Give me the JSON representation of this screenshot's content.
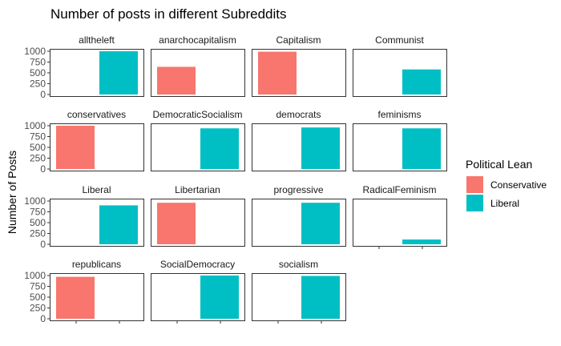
{
  "chart_data": {
    "type": "bar",
    "title": "Number of posts in different Subreddits",
    "xlabel": "",
    "ylabel": "Number of Posts",
    "ylim": [
      0,
      1050
    ],
    "yticks": [
      0,
      250,
      500,
      750,
      1000
    ],
    "facet_layout": "4 columns, 4 rows, shared axes",
    "grid": false,
    "legend": {
      "title": "Political Lean",
      "position": "right",
      "entries": [
        {
          "label": "Conservative",
          "color": "#F8766D"
        },
        {
          "label": "Liberal",
          "color": "#00BFC4"
        }
      ]
    },
    "categories": [
      "Conservative",
      "Liberal"
    ],
    "panels": [
      {
        "subreddit": "alltheleft",
        "lean": "Liberal",
        "value": 1000
      },
      {
        "subreddit": "anarchocapitalism",
        "lean": "Conservative",
        "value": 640
      },
      {
        "subreddit": "Capitalism",
        "lean": "Conservative",
        "value": 990
      },
      {
        "subreddit": "Communist",
        "lean": "Liberal",
        "value": 580
      },
      {
        "subreddit": "conservatives",
        "lean": "Conservative",
        "value": 1000
      },
      {
        "subreddit": "DemocraticSocialism",
        "lean": "Liberal",
        "value": 940
      },
      {
        "subreddit": "democrats",
        "lean": "Liberal",
        "value": 960
      },
      {
        "subreddit": "feminisms",
        "lean": "Liberal",
        "value": 940
      },
      {
        "subreddit": "Liberal",
        "lean": "Liberal",
        "value": 900
      },
      {
        "subreddit": "Libertarian",
        "lean": "Conservative",
        "value": 960
      },
      {
        "subreddit": "progressive",
        "lean": "Liberal",
        "value": 960
      },
      {
        "subreddit": "RadicalFeminism",
        "lean": "Liberal",
        "value": 110
      },
      {
        "subreddit": "republicans",
        "lean": "Conservative",
        "value": 970
      },
      {
        "subreddit": "SocialDemocracy",
        "lean": "Liberal",
        "value": 1000
      },
      {
        "subreddit": "socialism",
        "lean": "Liberal",
        "value": 990
      }
    ]
  }
}
